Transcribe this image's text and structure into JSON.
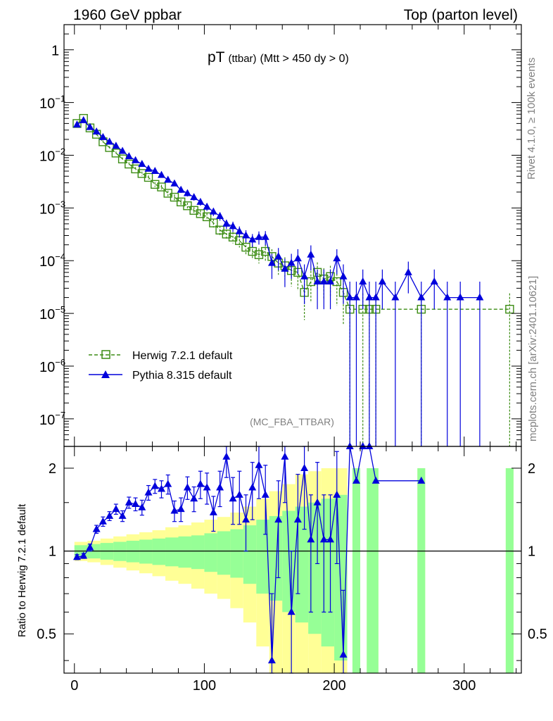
{
  "header": {
    "left": "1960 GeV ppbar",
    "right": "Top (parton level)"
  },
  "side_text": {
    "rivet": "Rivet 4.1.0, ≥ 100k events",
    "mcplots": "mcplots.cern.ch [arXiv:2401.10621]"
  },
  "colors": {
    "herwig": "#3c8c14",
    "pythia": "#0000dc",
    "band_yellow": "#ffff96",
    "band_green": "#96ff96",
    "ref_line": "#000000"
  },
  "chart_data": [
    {
      "type": "line",
      "title_main": "pT",
      "title_sub": "(ttbar)",
      "title_cut": "(Mtt > 450 dy > 0)",
      "watermark": "(MC_FBA_TTBAR)",
      "yscale": "log",
      "xlim": [
        -8,
        344
      ],
      "ylim": [
        3e-08,
        3
      ],
      "yticks": [
        {
          "v": 1,
          "base": "1",
          "exp": ""
        },
        {
          "v": 0.1,
          "base": "10",
          "exp": "−1"
        },
        {
          "v": 0.01,
          "base": "10",
          "exp": "−2"
        },
        {
          "v": 0.001,
          "base": "10",
          "exp": "−3"
        },
        {
          "v": 0.0001,
          "base": "10",
          "exp": "−4"
        },
        {
          "v": 1e-05,
          "base": "10",
          "exp": "−5"
        },
        {
          "v": 1e-06,
          "base": "10",
          "exp": "−6"
        },
        {
          "v": 1e-07,
          "base": "10",
          "exp": "−7"
        }
      ],
      "legend": [
        {
          "name": "Herwig 7.2.1 default",
          "marker": "open-square",
          "style": "dashed"
        },
        {
          "name": "Pythia 8.315 default",
          "marker": "filled-triangle",
          "style": "solid"
        }
      ],
      "series": [
        {
          "name": "Herwig 7.2.1 default",
          "x": [
            2,
            7,
            12,
            17,
            22,
            27,
            32,
            37,
            42,
            47,
            52,
            57,
            62,
            67,
            72,
            77,
            82,
            87,
            92,
            97,
            102,
            107,
            112,
            117,
            122,
            127,
            132,
            137,
            142,
            147,
            152,
            157,
            162,
            167,
            172,
            177,
            182,
            187,
            192,
            197,
            202,
            207,
            212,
            222,
            227,
            232,
            267,
            335
          ],
          "y": [
            0.04,
            0.05,
            0.033,
            0.025,
            0.018,
            0.014,
            0.011,
            0.0085,
            0.0068,
            0.0055,
            0.0045,
            0.0038,
            0.0028,
            0.0025,
            0.0019,
            0.0016,
            0.0013,
            0.0011,
            0.0009,
            0.00078,
            0.00068,
            0.00052,
            0.00038,
            0.00032,
            0.00028,
            0.00024,
            0.00018,
            0.00015,
            0.00013,
            0.00015,
            0.00012,
            9e-05,
            8e-05,
            6.5e-05,
            6e-05,
            2.5e-05,
            4e-05,
            6e-05,
            4.5e-05,
            5e-05,
            4e-05,
            2.5e-05,
            1.2e-05,
            1.2e-05,
            1.2e-05,
            1.2e-05,
            1.2e-05,
            1.2e-05
          ],
          "err_frac": [
            0.05,
            0.05,
            0.05,
            0.05,
            0.06,
            0.06,
            0.07,
            0.07,
            0.08,
            0.08,
            0.09,
            0.09,
            0.1,
            0.1,
            0.12,
            0.12,
            0.13,
            0.14,
            0.15,
            0.16,
            0.17,
            0.18,
            0.2,
            0.22,
            0.24,
            0.26,
            0.28,
            0.3,
            0.32,
            0.35,
            0.38,
            0.4,
            0.45,
            0.5,
            0.55,
            0.7,
            0.6,
            0.55,
            0.6,
            0.6,
            0.65,
            0.75,
            1.0,
            1.0,
            1.0,
            1.0,
            1.0,
            1.0
          ]
        },
        {
          "name": "Pythia 8.315 default",
          "x": [
            2,
            7,
            12,
            17,
            22,
            27,
            32,
            37,
            42,
            47,
            52,
            57,
            62,
            67,
            72,
            77,
            82,
            87,
            92,
            97,
            102,
            107,
            112,
            117,
            122,
            127,
            132,
            137,
            142,
            147,
            152,
            157,
            162,
            167,
            172,
            177,
            182,
            187,
            192,
            197,
            202,
            207,
            212,
            217,
            222,
            227,
            232,
            237,
            247,
            257,
            267,
            277,
            287,
            297,
            312
          ],
          "y": [
            0.038,
            0.046,
            0.034,
            0.028,
            0.022,
            0.018,
            0.015,
            0.012,
            0.0095,
            0.008,
            0.0068,
            0.0055,
            0.005,
            0.0042,
            0.0034,
            0.0029,
            0.0022,
            0.0019,
            0.0016,
            0.0013,
            0.00105,
            0.00085,
            0.0007,
            0.0005,
            0.00045,
            0.00036,
            0.0003,
            0.00025,
            0.00028,
            0.00028,
            9e-05,
            0.00012,
            7e-05,
            9e-05,
            0.00011,
            5e-05,
            0.00013,
            4e-05,
            4e-05,
            4e-05,
            0.00011,
            5e-05,
            2e-05,
            2e-05,
            4e-05,
            2e-05,
            2e-05,
            4e-05,
            2e-05,
            6e-05,
            2e-05,
            4e-05,
            2e-05,
            2e-05,
            2e-05
          ],
          "err_frac": [
            0.04,
            0.04,
            0.04,
            0.05,
            0.05,
            0.05,
            0.06,
            0.06,
            0.07,
            0.07,
            0.08,
            0.08,
            0.09,
            0.1,
            0.1,
            0.11,
            0.12,
            0.13,
            0.14,
            0.15,
            0.16,
            0.17,
            0.18,
            0.2,
            0.22,
            0.24,
            0.26,
            0.28,
            0.28,
            0.3,
            0.5,
            0.45,
            0.55,
            0.5,
            0.5,
            0.7,
            0.5,
            0.7,
            0.7,
            0.7,
            0.5,
            0.7,
            1.0,
            1.0,
            0.7,
            1.0,
            1.0,
            0.7,
            1.0,
            0.6,
            1.0,
            0.7,
            1.0,
            1.0,
            1.0
          ]
        }
      ]
    },
    {
      "type": "line",
      "ylabel": "Ratio to Herwig 7.2.1 default",
      "xlim": [
        -8,
        344
      ],
      "ylim": [
        0.36,
        2.4
      ],
      "yscale": "log",
      "reference": 1,
      "yticks": [
        {
          "v": 0.5,
          "label": "0.5"
        },
        {
          "v": 1,
          "label": "1"
        },
        {
          "v": 2,
          "label": "2"
        }
      ],
      "xticks": [
        {
          "v": 0,
          "label": "0"
        },
        {
          "v": 100,
          "label": "100"
        },
        {
          "v": 200,
          "label": "200"
        },
        {
          "v": 300,
          "label": "300"
        }
      ],
      "band_bins": [
        {
          "x0": 0,
          "x1": 10,
          "g": 0.05,
          "y": 0.08
        },
        {
          "x0": 10,
          "x1": 20,
          "g": 0.06,
          "y": 0.09
        },
        {
          "x0": 20,
          "x1": 30,
          "g": 0.07,
          "y": 0.11
        },
        {
          "x0": 30,
          "x1": 40,
          "g": 0.08,
          "y": 0.13
        },
        {
          "x0": 40,
          "x1": 50,
          "g": 0.09,
          "y": 0.15
        },
        {
          "x0": 50,
          "x1": 60,
          "g": 0.1,
          "y": 0.17
        },
        {
          "x0": 60,
          "x1": 70,
          "g": 0.11,
          "y": 0.19
        },
        {
          "x0": 70,
          "x1": 80,
          "g": 0.12,
          "y": 0.22
        },
        {
          "x0": 80,
          "x1": 90,
          "g": 0.13,
          "y": 0.24
        },
        {
          "x0": 90,
          "x1": 100,
          "g": 0.14,
          "y": 0.27
        },
        {
          "x0": 100,
          "x1": 110,
          "g": 0.16,
          "y": 0.3
        },
        {
          "x0": 110,
          "x1": 120,
          "g": 0.18,
          "y": 0.33
        },
        {
          "x0": 120,
          "x1": 130,
          "g": 0.2,
          "y": 0.38
        },
        {
          "x0": 130,
          "x1": 140,
          "g": 0.24,
          "y": 0.45
        },
        {
          "x0": 140,
          "x1": 150,
          "g": 0.3,
          "y": 0.55
        },
        {
          "x0": 150,
          "x1": 160,
          "g": 0.34,
          "y": 0.65
        },
        {
          "x0": 160,
          "x1": 170,
          "g": 0.4,
          "y": 0.75
        },
        {
          "x0": 170,
          "x1": 180,
          "g": 0.45,
          "y": 0.9
        },
        {
          "x0": 180,
          "x1": 190,
          "g": 0.5,
          "y": 0.95
        },
        {
          "x0": 190,
          "x1": 200,
          "g": 0.55,
          "y": 1.0
        },
        {
          "x0": 200,
          "x1": 210,
          "g": 0.6,
          "y": 1.0
        },
        {
          "x0": 214,
          "x1": 220,
          "g": 1.0,
          "y": 1.0
        },
        {
          "x0": 225,
          "x1": 234,
          "g": 1.0,
          "y": 1.0
        },
        {
          "x0": 264,
          "x1": 270,
          "g": 1.0,
          "y": 1.0
        },
        {
          "x0": 332,
          "x1": 338,
          "g": 1.0,
          "y": 1.0
        }
      ],
      "pythia_ratio": {
        "x": [
          2,
          7,
          12,
          17,
          22,
          27,
          32,
          37,
          42,
          47,
          52,
          57,
          62,
          67,
          72,
          77,
          82,
          87,
          92,
          97,
          102,
          107,
          112,
          117,
          122,
          127,
          132,
          137,
          142,
          147,
          152,
          157,
          162,
          167,
          172,
          177,
          182,
          187,
          192,
          197,
          202,
          207,
          212,
          217,
          222,
          227,
          232,
          267
        ],
        "y": [
          0.95,
          0.96,
          1.03,
          1.2,
          1.28,
          1.34,
          1.42,
          1.34,
          1.5,
          1.48,
          1.44,
          1.63,
          1.72,
          1.68,
          1.75,
          1.4,
          1.42,
          1.7,
          1.55,
          1.75,
          1.7,
          1.38,
          1.7,
          2.2,
          1.55,
          1.6,
          1.3,
          1.7,
          2.05,
          1.6,
          0.4,
          1.3,
          2.2,
          0.6,
          1.3,
          2.0,
          1.1,
          1.5,
          1.1,
          1.1,
          1.6,
          0.42,
          2.4,
          1.8,
          2.4,
          2.4,
          1.8,
          1.8
        ],
        "err": [
          0.02,
          0.02,
          0.03,
          0.04,
          0.05,
          0.05,
          0.06,
          0.06,
          0.07,
          0.08,
          0.09,
          0.1,
          0.1,
          0.12,
          0.14,
          0.12,
          0.14,
          0.16,
          0.16,
          0.2,
          0.22,
          0.2,
          0.25,
          0.35,
          0.3,
          0.35,
          0.3,
          0.4,
          0.5,
          0.45,
          0.3,
          0.5,
          0.7,
          0.4,
          0.6,
          0.8,
          0.5,
          0.6,
          0.5,
          0.5,
          0.7,
          0.3,
          0,
          0,
          0,
          0,
          0,
          0
        ]
      }
    }
  ]
}
